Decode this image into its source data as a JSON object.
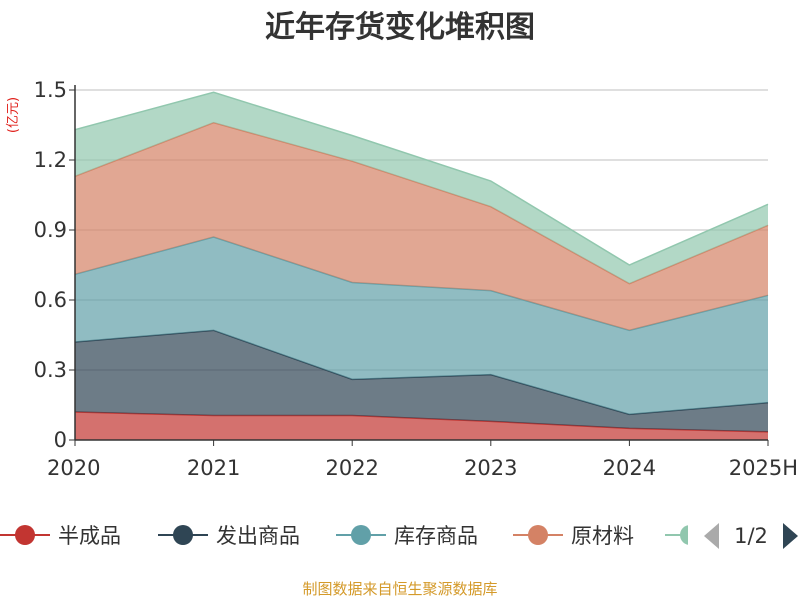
{
  "chart_data": {
    "type": "area",
    "stacked": true,
    "title": "近年存货变化堆积图",
    "y_unit": "(亿元)",
    "categories": [
      "2020",
      "2021",
      "2022",
      "2023",
      "2024",
      "2025H"
    ],
    "y_ticks": [
      "0",
      "0.3",
      "0.6",
      "0.9",
      "1.2",
      "1.5"
    ],
    "ylim": [
      0,
      1.5
    ],
    "grid": true,
    "series": [
      {
        "name": "半成品",
        "color": "#c23531",
        "values": [
          0.12,
          0.105,
          0.105,
          0.08,
          0.05,
          0.035
        ]
      },
      {
        "name": "发出商品",
        "color": "#2f4554",
        "values": [
          0.3,
          0.365,
          0.155,
          0.2,
          0.06,
          0.125
        ]
      },
      {
        "name": "库存商品",
        "color": "#61a0a8",
        "values": [
          0.29,
          0.4,
          0.415,
          0.36,
          0.36,
          0.46
        ]
      },
      {
        "name": "原材料",
        "color": "#d48265",
        "values": [
          0.42,
          0.49,
          0.52,
          0.36,
          0.2,
          0.3
        ]
      },
      {
        "name": "",
        "color": "#91c7ae",
        "values": [
          0.2,
          0.13,
          0.11,
          0.11,
          0.08,
          0.09
        ]
      }
    ],
    "legend_placement": "bottom"
  },
  "legend": {
    "page": "1/2",
    "prev_icon": "triangle-left-icon",
    "next_icon": "triangle-right-icon"
  },
  "source": "制图数据来自恒生聚源数据库"
}
